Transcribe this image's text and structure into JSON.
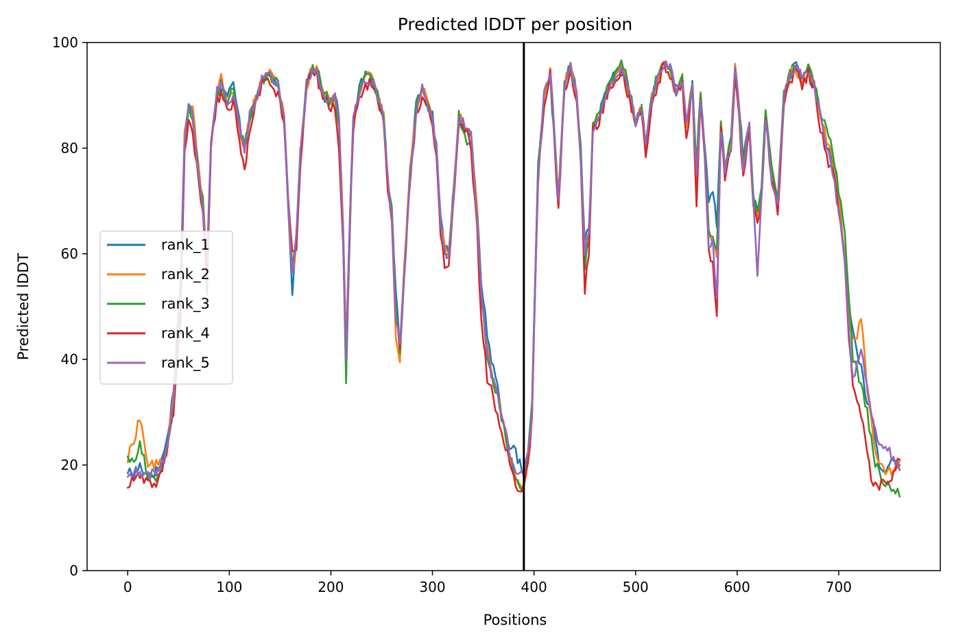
{
  "chart_data": {
    "type": "line",
    "title": "Predicted lDDT per position",
    "xlabel": "Positions",
    "ylabel": "Predicted lDDT",
    "xlim": [
      -40,
      800
    ],
    "ylim": [
      0,
      100
    ],
    "xticks": [
      0,
      100,
      200,
      300,
      400,
      500,
      600,
      700
    ],
    "yticks": [
      0,
      20,
      40,
      60,
      80,
      100
    ],
    "grid": false,
    "legend_position": "center-left",
    "chain_break": 390,
    "x_anchors": [
      0,
      6,
      12,
      20,
      30,
      38,
      45,
      52,
      56,
      60,
      64,
      70,
      74,
      78,
      82,
      88,
      92,
      98,
      104,
      110,
      115,
      120,
      126,
      132,
      140,
      148,
      154,
      158,
      162,
      166,
      170,
      176,
      182,
      186,
      192,
      198,
      204,
      208,
      212,
      215,
      218,
      222,
      228,
      234,
      240,
      246,
      252,
      256,
      260,
      264,
      268,
      272,
      278,
      284,
      290,
      296,
      300,
      304,
      308,
      312,
      316,
      320,
      326,
      332,
      338,
      344,
      348,
      354,
      358,
      364,
      370,
      376,
      382,
      386,
      390,
      394,
      398,
      404,
      410,
      416,
      420,
      424,
      430,
      436,
      442,
      446,
      450,
      454,
      458,
      464,
      470,
      476,
      482,
      488,
      494,
      500,
      506,
      510,
      516,
      522,
      528,
      534,
      540,
      546,
      550,
      556,
      560,
      564,
      568,
      572,
      576,
      580,
      584,
      588,
      594,
      598,
      602,
      606,
      612,
      616,
      620,
      624,
      628,
      634,
      640,
      646,
      652,
      658,
      664,
      670,
      676,
      682,
      688,
      694,
      700,
      706,
      710,
      714,
      718,
      722,
      728,
      734,
      740,
      746,
      752,
      760
    ],
    "series": [
      {
        "name": "rank_1",
        "color": "#1f77b4",
        "values": [
          19,
          18,
          20,
          18,
          19,
          24,
          34,
          55,
          83,
          88,
          86,
          75,
          70,
          58,
          82,
          91,
          92,
          90,
          92,
          85,
          80,
          86,
          89,
          93,
          94,
          91,
          85,
          68,
          53,
          62,
          78,
          92,
          96,
          95,
          90,
          89,
          90,
          86,
          65,
          42,
          62,
          85,
          92,
          94,
          93,
          90,
          86,
          74,
          70,
          52,
          42,
          55,
          75,
          88,
          91,
          88,
          86,
          80,
          68,
          62,
          60,
          70,
          86,
          84,
          82,
          68,
          55,
          45,
          40,
          35,
          28,
          24,
          22,
          20,
          18,
          22,
          30,
          75,
          90,
          93,
          82,
          70,
          92,
          96,
          90,
          80,
          62,
          65,
          84,
          86,
          90,
          93,
          94,
          95,
          90,
          85,
          88,
          80,
          90,
          93,
          96,
          95,
          91,
          93,
          84,
          92,
          76,
          91,
          80,
          70,
          72,
          65,
          85,
          76,
          82,
          95,
          88,
          78,
          85,
          70,
          68,
          72,
          87,
          75,
          70,
          90,
          94,
          96,
          93,
          95,
          92,
          86,
          80,
          78,
          70,
          60,
          50,
          45,
          42,
          38,
          32,
          28,
          20,
          18,
          22,
          20
        ]
      },
      {
        "name": "rank_2",
        "color": "#ff7f0e",
        "values": [
          21,
          25,
          29,
          20,
          20,
          22,
          33,
          50,
          82,
          88,
          87,
          76,
          70,
          57,
          81,
          90,
          93,
          89,
          90,
          84,
          80,
          86,
          89,
          93,
          94,
          92,
          86,
          69,
          56,
          62,
          79,
          92,
          95,
          95,
          91,
          89,
          90,
          85,
          66,
          42,
          62,
          85,
          91,
          94,
          93,
          90,
          86,
          74,
          68,
          45,
          40,
          57,
          76,
          87,
          92,
          89,
          86,
          80,
          66,
          61,
          60,
          69,
          87,
          84,
          83,
          68,
          52,
          42,
          38,
          34,
          28,
          22,
          17,
          16,
          16,
          21,
          30,
          75,
          90,
          95,
          83,
          71,
          92,
          96,
          90,
          78,
          60,
          63,
          84,
          86,
          90,
          92,
          94,
          95,
          90,
          85,
          88,
          80,
          90,
          93,
          96,
          95,
          91,
          93,
          84,
          92,
          75,
          90,
          80,
          64,
          62,
          60,
          85,
          76,
          81,
          95,
          88,
          76,
          85,
          70,
          67,
          71,
          86,
          75,
          70,
          90,
          94,
          95,
          93,
          94,
          92,
          86,
          82,
          78,
          70,
          60,
          48,
          44,
          45,
          48,
          35,
          25,
          20,
          18,
          19,
          21
        ]
      },
      {
        "name": "rank_3",
        "color": "#2ca02c",
        "values": [
          22,
          20,
          24,
          18,
          18,
          22,
          31,
          52,
          81,
          87,
          86,
          75,
          70,
          52,
          81,
          90,
          92,
          89,
          91,
          84,
          80,
          86,
          89,
          93,
          94,
          92,
          85,
          69,
          58,
          63,
          79,
          92,
          95,
          95,
          91,
          89,
          90,
          84,
          63,
          36,
          60,
          85,
          91,
          93,
          93,
          90,
          86,
          74,
          68,
          50,
          42,
          55,
          75,
          88,
          91,
          88,
          86,
          80,
          64,
          60,
          60,
          69,
          86,
          82,
          80,
          66,
          52,
          40,
          37,
          33,
          27,
          22,
          17,
          16,
          16,
          22,
          31,
          76,
          90,
          94,
          83,
          70,
          92,
          95,
          90,
          80,
          58,
          62,
          84,
          86,
          90,
          93,
          95,
          96,
          91,
          86,
          88,
          80,
          90,
          94,
          97,
          95,
          91,
          94,
          84,
          93,
          77,
          91,
          80,
          64,
          63,
          60,
          86,
          76,
          82,
          95,
          88,
          77,
          85,
          71,
          68,
          72,
          87,
          76,
          71,
          90,
          94,
          95,
          93,
          95,
          92,
          87,
          84,
          80,
          72,
          64,
          52,
          40,
          38,
          35,
          30,
          22,
          18,
          16,
          16,
          14
        ]
      },
      {
        "name": "rank_4",
        "color": "#d62728",
        "values": [
          16,
          17,
          18,
          16,
          17,
          22,
          30,
          48,
          79,
          85,
          83,
          73,
          68,
          55,
          80,
          89,
          90,
          87,
          89,
          82,
          75,
          84,
          88,
          92,
          93,
          90,
          84,
          70,
          60,
          60,
          77,
          91,
          95,
          94,
          89,
          88,
          88,
          80,
          62,
          40,
          60,
          84,
          90,
          92,
          92,
          89,
          85,
          72,
          66,
          48,
          43,
          55,
          74,
          86,
          90,
          87,
          85,
          78,
          64,
          58,
          58,
          68,
          84,
          84,
          80,
          64,
          48,
          36,
          34,
          30,
          25,
          20,
          16,
          16,
          16,
          20,
          29,
          74,
          88,
          94,
          82,
          68,
          91,
          95,
          88,
          78,
          53,
          60,
          83,
          85,
          89,
          92,
          93,
          94,
          89,
          84,
          87,
          78,
          89,
          92,
          96,
          94,
          90,
          92,
          82,
          91,
          70,
          89,
          78,
          60,
          58,
          48,
          84,
          74,
          80,
          94,
          86,
          74,
          84,
          68,
          66,
          70,
          86,
          74,
          68,
          89,
          93,
          94,
          92,
          94,
          91,
          84,
          78,
          76,
          68,
          58,
          44,
          36,
          32,
          30,
          22,
          16,
          16,
          17,
          18,
          21
        ]
      },
      {
        "name": "rank_5",
        "color": "#9467bd",
        "values": [
          18,
          19,
          18,
          18,
          19,
          22,
          32,
          53,
          82,
          88,
          86,
          75,
          69,
          58,
          82,
          91,
          92,
          89,
          90,
          84,
          80,
          86,
          89,
          93,
          94,
          92,
          86,
          70,
          57,
          63,
          79,
          92,
          95,
          95,
          91,
          89,
          90,
          85,
          65,
          40,
          62,
          85,
          91,
          93,
          93,
          90,
          86,
          74,
          68,
          48,
          42,
          56,
          75,
          87,
          91,
          88,
          86,
          80,
          66,
          60,
          60,
          69,
          86,
          84,
          82,
          67,
          52,
          42,
          37,
          33,
          28,
          22,
          19,
          18,
          18,
          22,
          30,
          75,
          90,
          94,
          83,
          70,
          92,
          95,
          90,
          79,
          60,
          63,
          84,
          86,
          90,
          92,
          94,
          95,
          90,
          85,
          88,
          80,
          90,
          93,
          96,
          95,
          91,
          93,
          84,
          92,
          74,
          90,
          80,
          62,
          62,
          52,
          84,
          76,
          81,
          95,
          88,
          76,
          85,
          70,
          56,
          70,
          86,
          74,
          70,
          90,
          94,
          96,
          93,
          95,
          92,
          86,
          80,
          76,
          68,
          58,
          46,
          36,
          40,
          42,
          35,
          28,
          24,
          24,
          22,
          19
        ]
      }
    ]
  }
}
